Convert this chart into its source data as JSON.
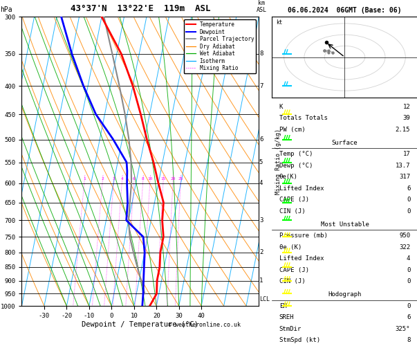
{
  "title": "43°37'N  13°22'E  119m  ASL",
  "date_str": "06.06.2024  06GMT (Base: 06)",
  "xlabel": "Dewpoint / Temperature (°C)",
  "pressure_levels": [
    300,
    350,
    400,
    450,
    500,
    550,
    600,
    650,
    700,
    750,
    800,
    850,
    900,
    950,
    1000
  ],
  "temp_ticks": [
    -30,
    -20,
    -10,
    0,
    10,
    20,
    30,
    40
  ],
  "km_labels": [
    1,
    2,
    3,
    4,
    5,
    6,
    7,
    8
  ],
  "km_pressures": [
    900,
    800,
    700,
    600,
    550,
    500,
    400,
    350
  ],
  "temperature_profile": {
    "pressure": [
      300,
      320,
      350,
      400,
      450,
      500,
      550,
      600,
      650,
      700,
      750,
      800,
      850,
      900,
      950,
      1000
    ],
    "temp": [
      -30,
      -25,
      -18,
      -10,
      -4,
      1,
      6,
      10,
      14,
      15,
      17,
      17,
      18,
      18,
      19,
      17
    ],
    "color": "#ff0000",
    "linewidth": 2.0
  },
  "dewpoint_profile": {
    "pressure": [
      300,
      350,
      400,
      450,
      500,
      550,
      570,
      600,
      650,
      700,
      750,
      800,
      850,
      900,
      950,
      1000
    ],
    "temp": [
      -48,
      -40,
      -32,
      -24,
      -14,
      -6,
      -5,
      -4,
      -2,
      -1,
      8,
      10,
      11,
      12,
      13,
      13.7
    ],
    "color": "#0000ff",
    "linewidth": 2.0
  },
  "parcel_trajectory": {
    "pressure": [
      950,
      900,
      850,
      800,
      750,
      700,
      650,
      600,
      550,
      500,
      450,
      400,
      350,
      300
    ],
    "temp": [
      13.7,
      11,
      8,
      5,
      2,
      0,
      -1,
      -2,
      -4,
      -7,
      -11,
      -16,
      -22,
      -29
    ],
    "color": "#888888",
    "linewidth": 1.5
  },
  "isotherm_color": "#00aaff",
  "dry_adiabat_color": "#ff8800",
  "wet_adiabat_color": "#00aa00",
  "mixing_ratio_color": "#ff00ff",
  "mixing_ratios": [
    1,
    2,
    3,
    4,
    6,
    8,
    10,
    15,
    20,
    25
  ],
  "lcl_pressure": 950,
  "skew": 0.32,
  "t_min": -40,
  "t_max": 40,
  "indices": {
    "K": 12,
    "Totals Totals": 39,
    "PW (cm)": "2.15"
  },
  "surface_rows": [
    [
      "Temp (°C)",
      "17"
    ],
    [
      "Dewp (°C)",
      "13.7"
    ],
    [
      "θe(K)",
      "317"
    ],
    [
      "Lifted Index",
      "6"
    ],
    [
      "CAPE (J)",
      "0"
    ],
    [
      "CIN (J)",
      "0"
    ]
  ],
  "mu_rows": [
    [
      "Pressure (mb)",
      "950"
    ],
    [
      "θe (K)",
      "322"
    ],
    [
      "Lifted Index",
      "4"
    ],
    [
      "CAPE (J)",
      "0"
    ],
    [
      "CIN (J)",
      "0"
    ]
  ],
  "hodo_rows": [
    [
      "EH",
      "0"
    ],
    [
      "SREH",
      "6"
    ],
    [
      "StmDir",
      "325°"
    ],
    [
      "StmSpd (kt)",
      "8"
    ]
  ],
  "wind_barb_colors": [
    "#ffff00",
    "#ffff00",
    "#ffff00",
    "#ffff00",
    "#ffff00",
    "#ffff00",
    "#00ff00",
    "#00ff00",
    "#00ff00",
    "#00ff00",
    "#00ff00",
    "#ffff00",
    "#00ccff",
    "#00ccff"
  ],
  "wind_barb_pressures": [
    1000,
    950,
    900,
    850,
    800,
    750,
    700,
    650,
    600,
    550,
    500,
    450,
    400,
    350
  ],
  "wind_barb_types": [
    3,
    3,
    3,
    3,
    5,
    5,
    5,
    5,
    5,
    5,
    4,
    3,
    2,
    2
  ]
}
